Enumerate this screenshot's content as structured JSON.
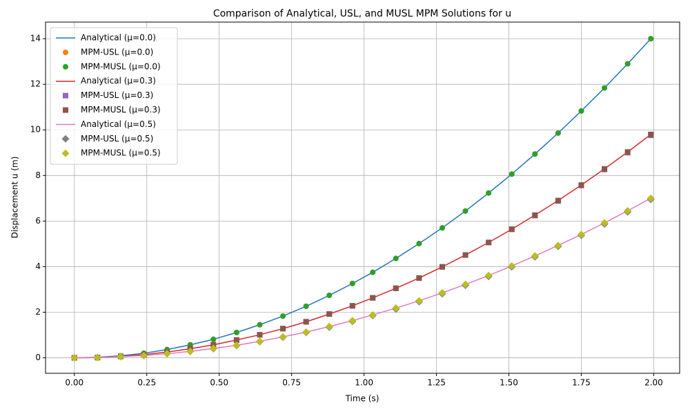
{
  "chart_data": {
    "type": "line",
    "title": "Comparison of Analytical, USL, and MUSL MPM Solutions for u",
    "x_label": "Time (s)",
    "y_label": "Displacement u (m)",
    "x": [
      0,
      0.08,
      0.16,
      0.24,
      0.32,
      0.4,
      0.48,
      0.56,
      0.64,
      0.72,
      0.8,
      0.88,
      0.96,
      1.03,
      1.11,
      1.19,
      1.27,
      1.35,
      1.43,
      1.51,
      1.59,
      1.67,
      1.75,
      1.83,
      1.91,
      1.99
    ],
    "series": [
      {
        "name": "Analytical (μ=0.0)",
        "color": "#1f77b4",
        "style": "line",
        "values": [
          0,
          0.02,
          0.09,
          0.2,
          0.36,
          0.57,
          0.81,
          1.11,
          1.45,
          1.83,
          2.26,
          2.74,
          3.26,
          3.75,
          4.36,
          5.01,
          5.7,
          6.44,
          7.23,
          8.06,
          8.94,
          9.86,
          10.83,
          11.84,
          12.9,
          14.0
        ]
      },
      {
        "name": "MPM-USL (μ=0.0)",
        "color": "#ff7f0e",
        "style": "marker",
        "marker": "circle",
        "values": [
          0,
          0.02,
          0.09,
          0.2,
          0.36,
          0.57,
          0.81,
          1.11,
          1.45,
          1.83,
          2.26,
          2.74,
          3.26,
          3.75,
          4.36,
          5.01,
          5.7,
          6.44,
          7.23,
          8.06,
          8.94,
          9.86,
          10.83,
          11.84,
          12.9,
          14.0
        ]
      },
      {
        "name": "MPM-MUSL (μ=0.0)",
        "color": "#2ca02c",
        "style": "marker",
        "marker": "circle",
        "values": [
          0,
          0.02,
          0.09,
          0.2,
          0.36,
          0.57,
          0.81,
          1.11,
          1.45,
          1.83,
          2.26,
          2.74,
          3.26,
          3.75,
          4.36,
          5.01,
          5.7,
          6.44,
          7.23,
          8.06,
          8.94,
          9.86,
          10.83,
          11.84,
          12.9,
          14.0
        ]
      },
      {
        "name": "Analytical (μ=0.3)",
        "color": "#d62728",
        "style": "line",
        "values": [
          0,
          0.01,
          0.06,
          0.14,
          0.25,
          0.4,
          0.57,
          0.78,
          1.01,
          1.28,
          1.58,
          1.92,
          2.28,
          2.63,
          3.05,
          3.5,
          3.99,
          4.51,
          5.06,
          5.64,
          6.26,
          6.9,
          7.58,
          8.29,
          9.03,
          9.8
        ]
      },
      {
        "name": "MPM-USL (μ=0.3)",
        "color": "#9467bd",
        "style": "marker",
        "marker": "square",
        "values": [
          0,
          0.01,
          0.06,
          0.14,
          0.25,
          0.4,
          0.57,
          0.78,
          1.01,
          1.28,
          1.58,
          1.92,
          2.28,
          2.63,
          3.05,
          3.5,
          3.99,
          4.51,
          5.06,
          5.64,
          6.24,
          6.88,
          7.56,
          8.26,
          9.0,
          9.76
        ]
      },
      {
        "name": "MPM-MUSL (μ=0.3)",
        "color": "#8c564b",
        "style": "marker",
        "marker": "square",
        "values": [
          0,
          0.01,
          0.06,
          0.14,
          0.25,
          0.4,
          0.57,
          0.78,
          1.01,
          1.28,
          1.58,
          1.92,
          2.28,
          2.63,
          3.05,
          3.5,
          3.99,
          4.51,
          5.06,
          5.64,
          6.26,
          6.9,
          7.58,
          8.29,
          9.03,
          9.8
        ]
      },
      {
        "name": "Analytical (μ=0.5)",
        "color": "#e377c2",
        "style": "line",
        "values": [
          0,
          0.01,
          0.05,
          0.1,
          0.18,
          0.28,
          0.41,
          0.55,
          0.72,
          0.92,
          1.13,
          1.37,
          1.63,
          1.88,
          2.18,
          2.5,
          2.85,
          3.22,
          3.61,
          4.03,
          4.47,
          4.93,
          5.41,
          5.92,
          6.45,
          7.0
        ]
      },
      {
        "name": "MPM-USL (μ=0.5)",
        "color": "#7f7f7f",
        "style": "marker",
        "marker": "diamond",
        "values": [
          0,
          0.01,
          0.05,
          0.1,
          0.18,
          0.28,
          0.4,
          0.54,
          0.71,
          0.9,
          1.11,
          1.34,
          1.6,
          1.85,
          2.14,
          2.46,
          2.81,
          3.18,
          3.57,
          3.99,
          4.43,
          4.89,
          5.37,
          5.87,
          6.4,
          6.95
        ]
      },
      {
        "name": "MPM-MUSL (μ=0.5)",
        "color": "#bcbd22",
        "style": "marker",
        "marker": "diamond",
        "values": [
          0,
          0.01,
          0.05,
          0.1,
          0.18,
          0.28,
          0.41,
          0.55,
          0.72,
          0.92,
          1.13,
          1.37,
          1.63,
          1.88,
          2.18,
          2.5,
          2.85,
          3.22,
          3.61,
          4.03,
          4.47,
          4.93,
          5.41,
          5.92,
          6.45,
          7.0
        ]
      }
    ],
    "xlim": [
      -0.0995,
      2.0895
    ],
    "ylim": [
      -0.68,
      14.73
    ],
    "xticks": [
      {
        "value": 0,
        "label": "0.00"
      },
      {
        "value": 0.25,
        "label": "0.25"
      },
      {
        "value": 0.5,
        "label": "0.50"
      },
      {
        "value": 0.75,
        "label": "0.75"
      },
      {
        "value": 1,
        "label": "1.00"
      },
      {
        "value": 1.25,
        "label": "1.25"
      },
      {
        "value": 1.5,
        "label": "1.50"
      },
      {
        "value": 1.75,
        "label": "1.75"
      },
      {
        "value": 2,
        "label": "2.00"
      }
    ],
    "yticks": [
      0,
      2,
      4,
      6,
      8,
      10,
      12,
      14
    ],
    "grid": true,
    "legend": "upper-left"
  }
}
